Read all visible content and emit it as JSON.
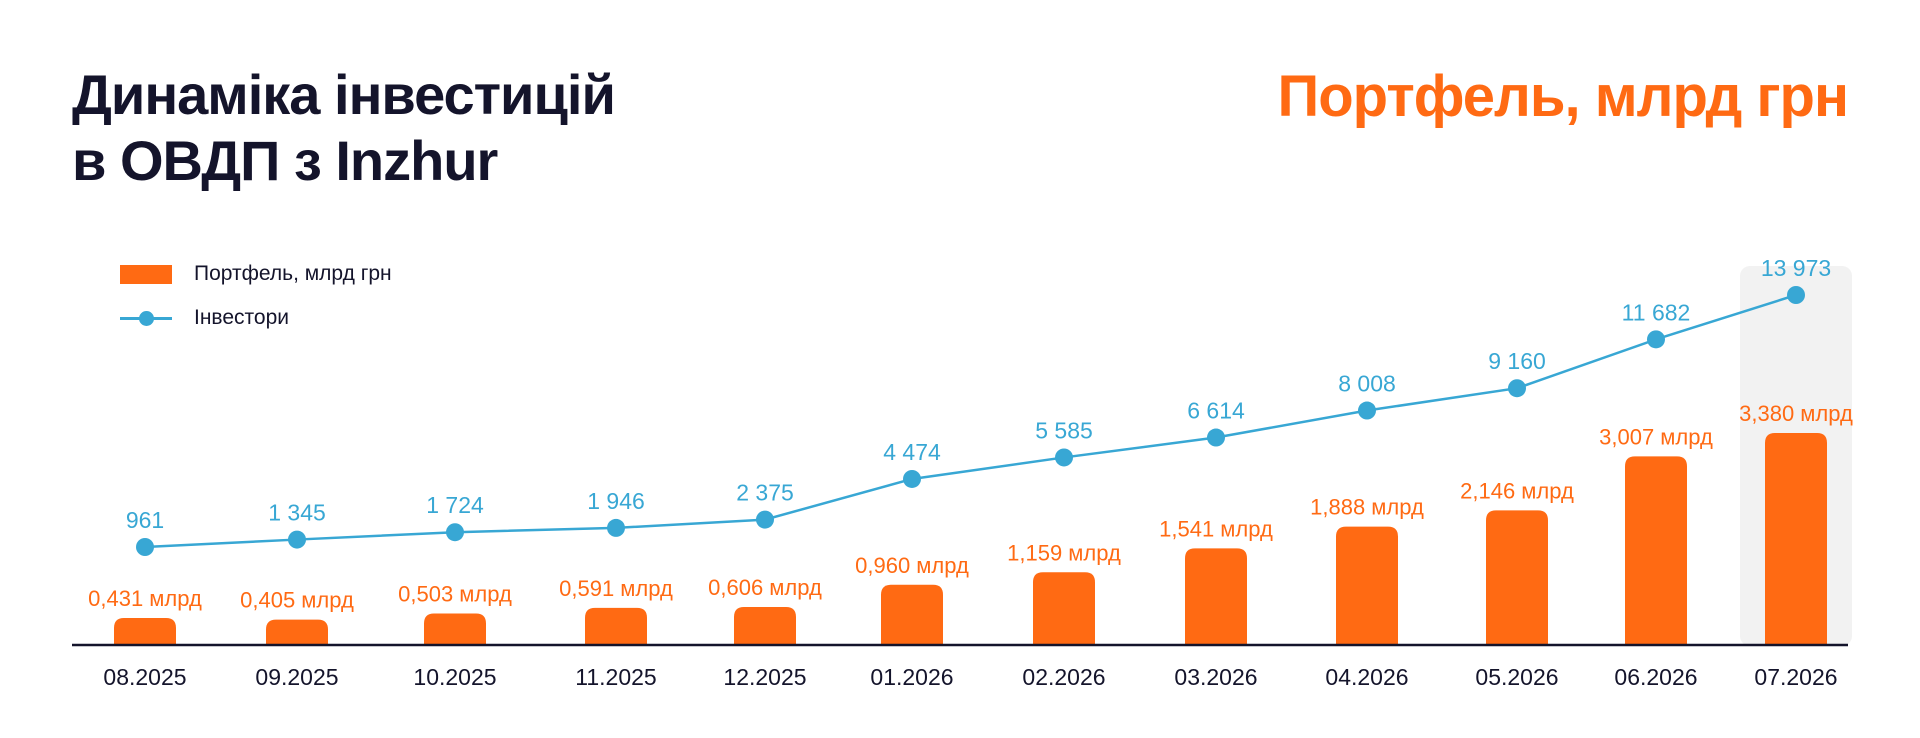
{
  "title": {
    "line1": "Динаміка інвестицій",
    "line2": "в ОВДП з Inzhur"
  },
  "headline": "Портфель, млрд грн",
  "legend": {
    "bars": "Портфель, млрд грн",
    "line": "Інвестори"
  },
  "colors": {
    "bar": "#ff6a13",
    "line": "#38a7d4",
    "text": "#14142b",
    "highlight": "#f2f2f2"
  },
  "chart_data": {
    "type": "bar+line",
    "categories": [
      "08.2025",
      "09.2025",
      "10.2025",
      "11.2025",
      "12.2025",
      "01.2026",
      "02.2026",
      "03.2026",
      "04.2026",
      "05.2026",
      "06.2026",
      "07.2026"
    ],
    "series": [
      {
        "name": "Портфель, млрд грн",
        "type": "bar",
        "values": [
          0.431,
          0.405,
          0.503,
          0.591,
          0.606,
          0.96,
          1.159,
          1.541,
          1.888,
          2.146,
          3.007,
          3.38
        ],
        "labels": [
          "0,431 млрд",
          "0,405 млрд",
          "0,503 млрд",
          "0,591 млрд",
          "0,606 млрд",
          "0,960 млрд",
          "1,159 млрд",
          "1,541 млрд",
          "1,888 млрд",
          "2,146 млрд",
          "3,007 млрд",
          "3,380 млрд"
        ]
      },
      {
        "name": "Інвестори",
        "type": "line",
        "values": [
          961,
          1345,
          1724,
          1946,
          2375,
          4474,
          5585,
          6614,
          8008,
          9160,
          11682,
          13973
        ],
        "labels": [
          "961",
          "1 345",
          "1 724",
          "1 946",
          "2 375",
          "4 474",
          "5 585",
          "6 614",
          "8 008",
          "9 160",
          "11 682",
          "13 973"
        ]
      }
    ],
    "highlighted_category": "07.2026",
    "grid": false,
    "legend_position": "top-left"
  }
}
